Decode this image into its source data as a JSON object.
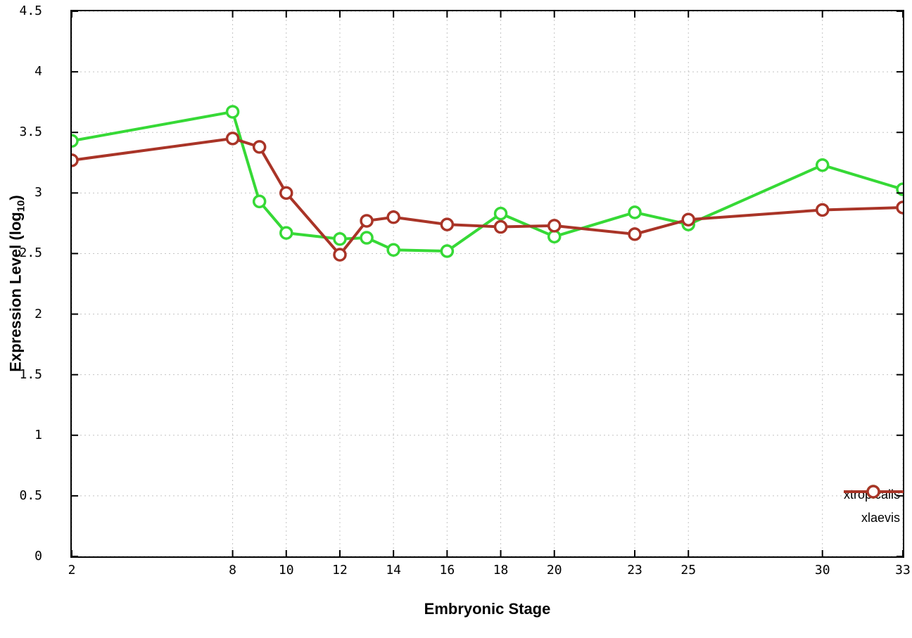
{
  "chart_data": {
    "type": "line",
    "title": "",
    "xlabel": "Embryonic Stage",
    "ylabel_main": "Expression Level (log",
    "ylabel_sub": "10",
    "ylabel_close": ")",
    "x": [
      2,
      8,
      9,
      10,
      12,
      13,
      14,
      16,
      18,
      20,
      23,
      25,
      30,
      33
    ],
    "series": [
      {
        "name": "xtropicalis",
        "color": "#36d936",
        "values": [
          3.43,
          3.67,
          2.93,
          2.67,
          2.62,
          2.63,
          2.53,
          2.52,
          2.83,
          2.64,
          2.84,
          2.74,
          3.23,
          3.03
        ]
      },
      {
        "name": "xlaevis",
        "color": "#a93427",
        "values": [
          3.27,
          3.45,
          3.38,
          3.0,
          2.49,
          2.77,
          2.8,
          2.74,
          2.72,
          2.73,
          2.66,
          2.78,
          2.86,
          2.88
        ]
      }
    ],
    "xlim": [
      2,
      33
    ],
    "ylim": [
      0,
      4.5
    ],
    "xticks": [
      2,
      8,
      10,
      12,
      14,
      16,
      18,
      20,
      23,
      25,
      30,
      33
    ],
    "yticks": [
      0,
      0.5,
      1,
      1.5,
      2,
      2.5,
      3,
      3.5,
      4,
      4.5
    ],
    "grid": true,
    "legend_position": "bottom-right-inside",
    "marker": "open-circle",
    "line_width": 4
  }
}
